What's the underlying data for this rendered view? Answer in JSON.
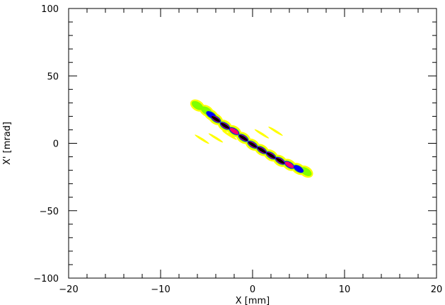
{
  "chart_data": {
    "type": "heatmap",
    "title": "",
    "xlabel": "X [mm]",
    "ylabel": "X' [mrad]",
    "xlim": [
      -20,
      20
    ],
    "ylim": [
      -100,
      100
    ],
    "x_ticks": [
      -20,
      -10,
      0,
      10,
      20
    ],
    "x_tick_labels": [
      "−20",
      "−10",
      "0",
      "10",
      "20"
    ],
    "y_ticks": [
      -100,
      -50,
      0,
      50,
      100
    ],
    "y_tick_labels": [
      "−100",
      "−50",
      "0",
      "50",
      "100"
    ],
    "x_minor_step": 2,
    "y_minor_step": 10,
    "grid": false,
    "colors": {
      "low": "#ffff00",
      "mid_low": "#7fff00",
      "mid": "#0000ff",
      "mid_high": "#ff0066",
      "high": "#000000"
    },
    "distribution": {
      "description_values": {
        "center_x": 0,
        "center_xp": 0,
        "slope_mrad_per_mm": -4.2,
        "x_extent": [
          -6,
          6
        ]
      },
      "band": [
        {
          "x": -6.0,
          "xp": 28,
          "level": "low"
        },
        {
          "x": -5.0,
          "xp": 24,
          "level": "low"
        },
        {
          "x": -4.5,
          "xp": 21,
          "level": "mid"
        },
        {
          "x": -4.0,
          "xp": 18,
          "level": "high"
        },
        {
          "x": -3.0,
          "xp": 13,
          "level": "high"
        },
        {
          "x": -2.0,
          "xp": 9,
          "level": "mid_high"
        },
        {
          "x": -1.0,
          "xp": 4,
          "level": "high"
        },
        {
          "x": 0.0,
          "xp": -1,
          "level": "high"
        },
        {
          "x": 1.0,
          "xp": -5,
          "level": "high"
        },
        {
          "x": 2.0,
          "xp": -9,
          "level": "high"
        },
        {
          "x": 3.0,
          "xp": -13,
          "level": "high"
        },
        {
          "x": 4.0,
          "xp": -16,
          "level": "mid_high"
        },
        {
          "x": 5.0,
          "xp": -19,
          "level": "mid"
        },
        {
          "x": 5.8,
          "xp": -21,
          "level": "low"
        }
      ],
      "halo": [
        {
          "x": -5.5,
          "xp": 3,
          "level": "low"
        },
        {
          "x": -4.0,
          "xp": 4,
          "level": "low"
        },
        {
          "x": -2.5,
          "xp": 6,
          "level": "low"
        },
        {
          "x": 1.0,
          "xp": 7,
          "level": "low"
        },
        {
          "x": 2.5,
          "xp": 9,
          "level": "low"
        }
      ]
    }
  }
}
